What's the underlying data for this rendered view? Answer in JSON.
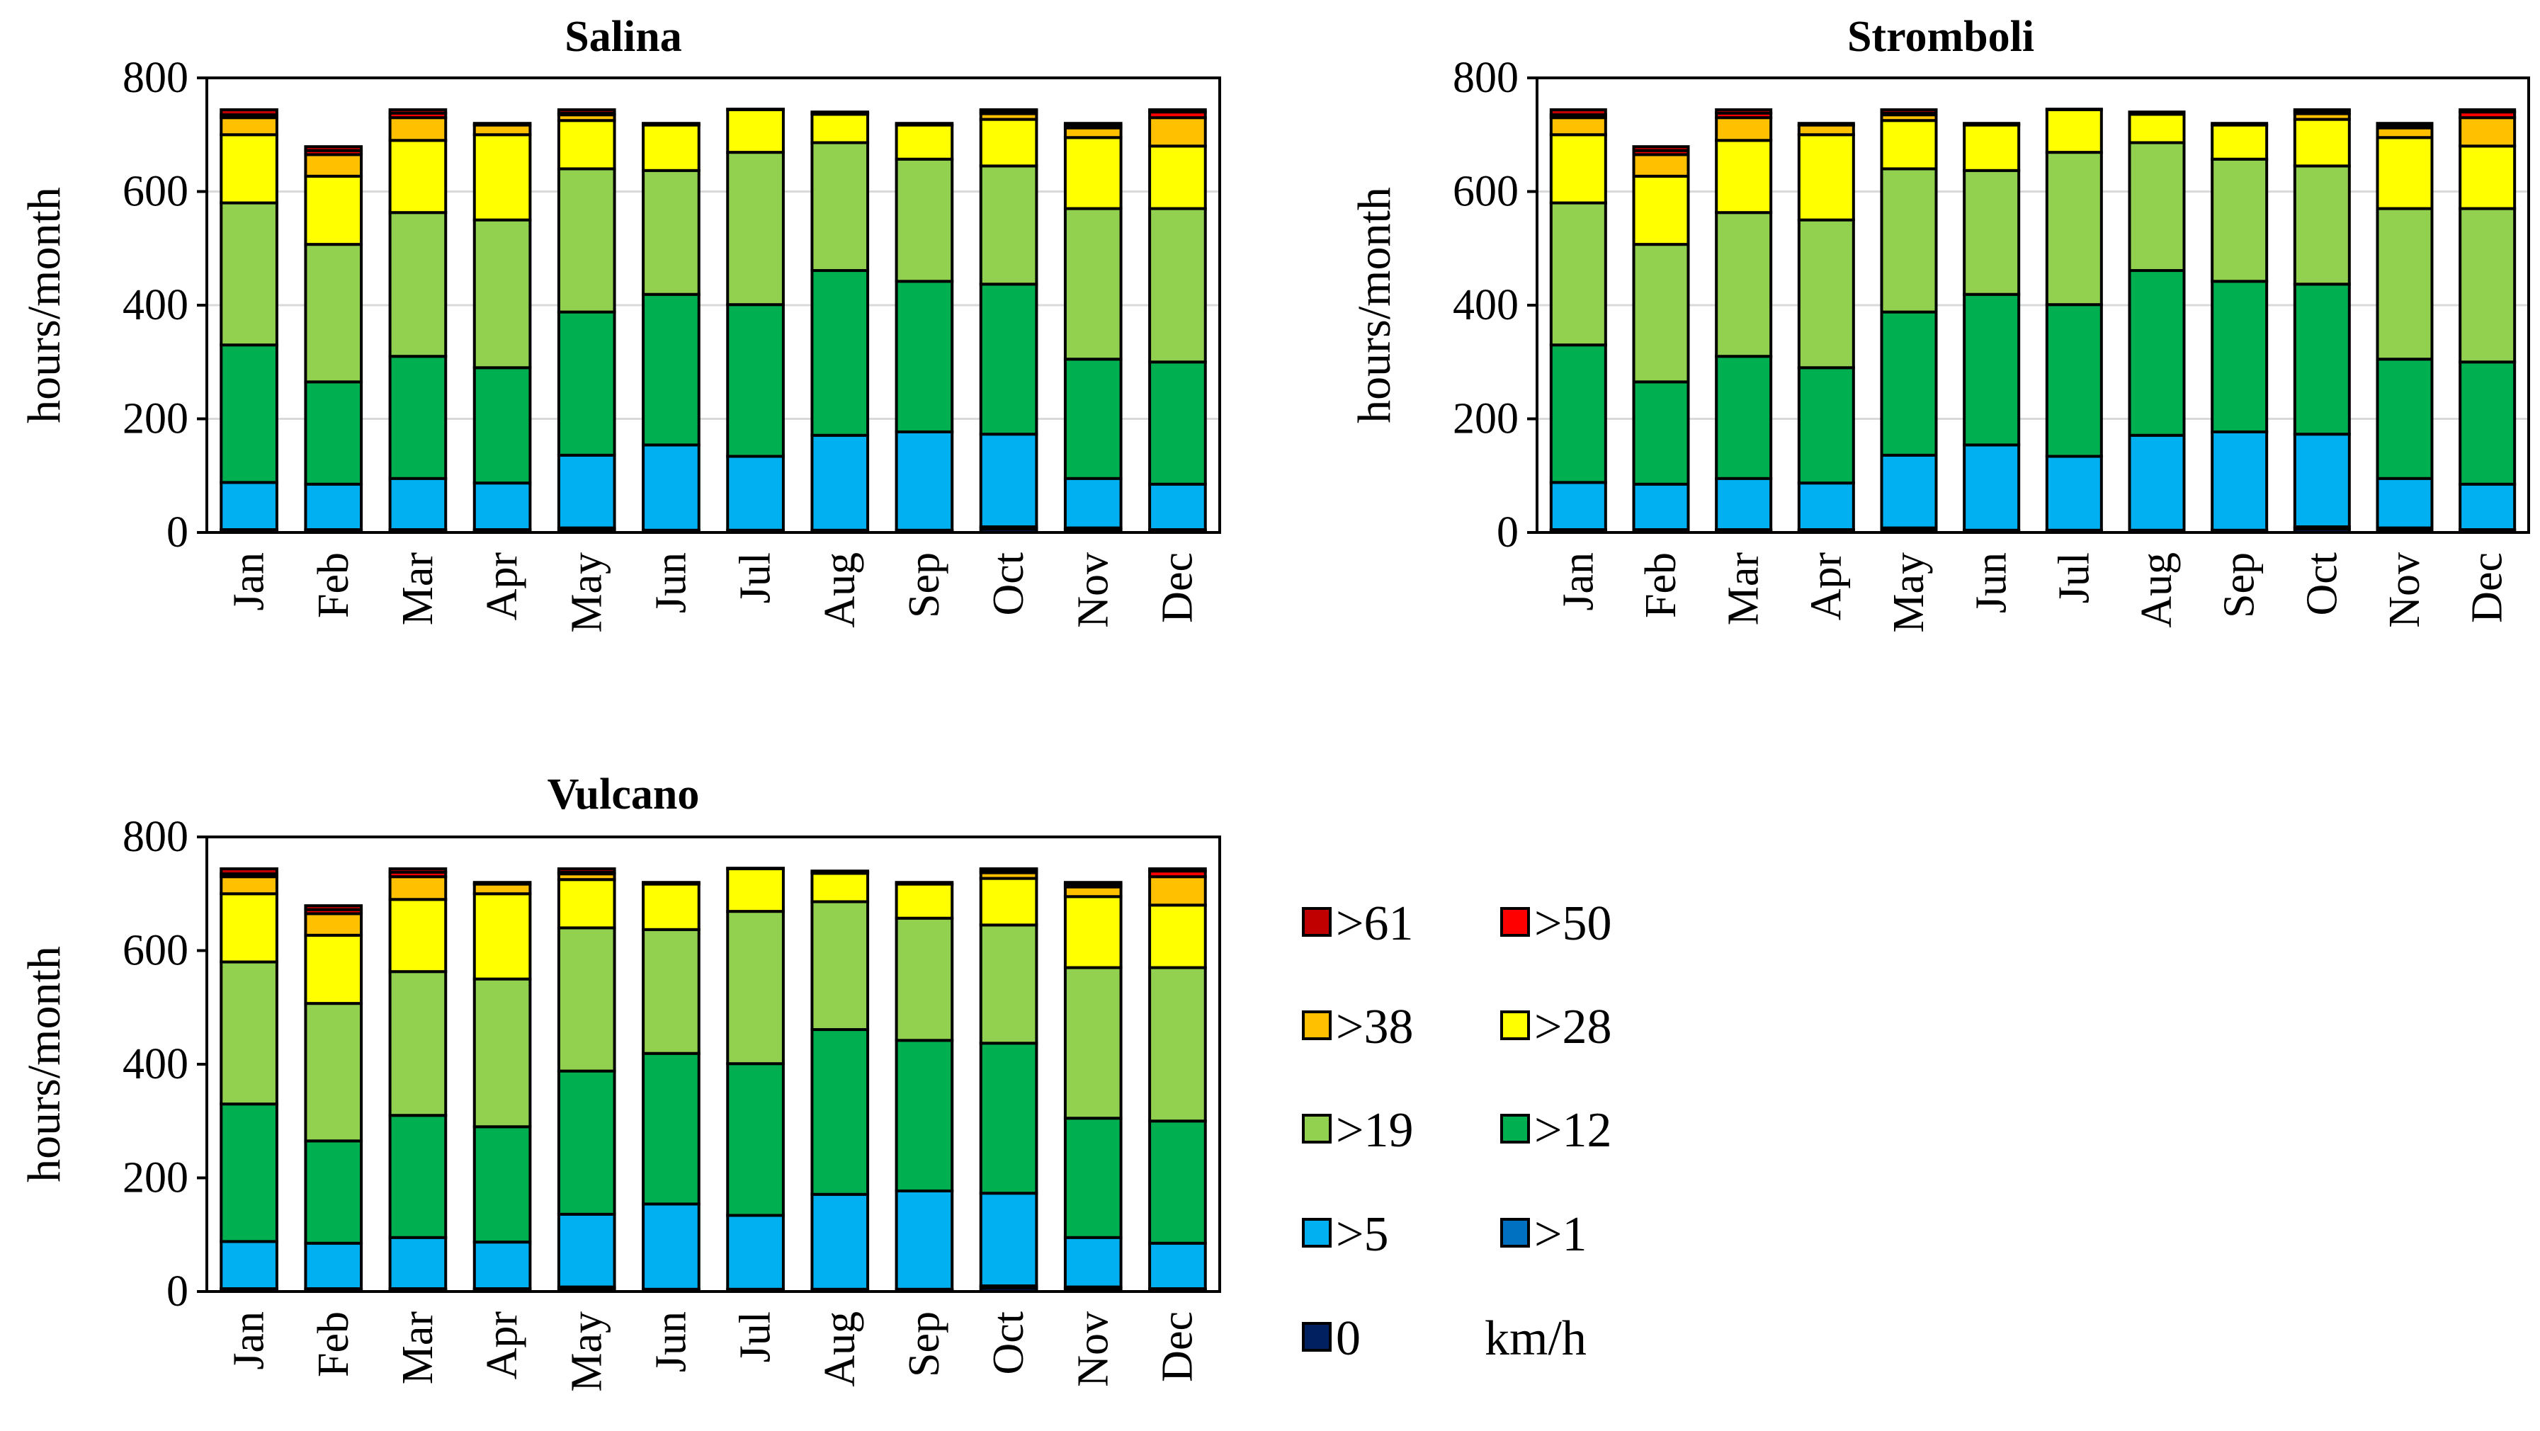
{
  "legend": {
    "unit": "km/h",
    "entries": [
      {
        "label": ">61",
        "color": "#c00000"
      },
      {
        "label": ">50",
        "color": "#ff0000"
      },
      {
        "label": ">38",
        "color": "#ffc000"
      },
      {
        "label": ">28",
        "color": "#ffff00"
      },
      {
        "label": ">19",
        "color": "#92d050"
      },
      {
        "label": ">12",
        "color": "#00b050"
      },
      {
        "label": ">5",
        "color": "#00b0f0"
      },
      {
        "label": ">1",
        "color": "#0070c0"
      },
      {
        "label": "0",
        "color": "#002060"
      }
    ]
  },
  "chart_data": [
    {
      "type": "bar",
      "stacked": true,
      "title": "Salina",
      "ylabel": "hours/month",
      "xlabel": "",
      "ylim": [
        0,
        800
      ],
      "yticks": [
        0,
        200,
        400,
        600,
        800
      ],
      "grid": true,
      "categories": [
        "Jan",
        "Feb",
        "Mar",
        "Apr",
        "May",
        "Jun",
        "Jul",
        "Aug",
        "Sep",
        "Oct",
        "Nov",
        "Dec"
      ],
      "series": [
        {
          "name": "0",
          "color": "#002060",
          "values": [
            3,
            3,
            3,
            3,
            5,
            2,
            2,
            2,
            2,
            6,
            5,
            3
          ]
        },
        {
          "name": ">1",
          "color": "#0070c0",
          "values": [
            2,
            2,
            2,
            2,
            3,
            2,
            2,
            2,
            2,
            4,
            3,
            2
          ]
        },
        {
          "name": ">5",
          "color": "#00b0f0",
          "values": [
            83,
            80,
            90,
            82,
            128,
            150,
            130,
            167,
            173,
            163,
            87,
            80
          ]
        },
        {
          "name": ">12",
          "color": "#00b050",
          "values": [
            242,
            180,
            215,
            203,
            252,
            265,
            267,
            290,
            265,
            264,
            210,
            215
          ]
        },
        {
          "name": ">19",
          "color": "#92d050",
          "values": [
            250,
            242,
            253,
            260,
            252,
            218,
            268,
            225,
            215,
            208,
            265,
            270
          ]
        },
        {
          "name": ">28",
          "color": "#ffff00",
          "values": [
            120,
            120,
            127,
            150,
            85,
            80,
            75,
            50,
            60,
            82,
            125,
            110
          ]
        },
        {
          "name": ">38",
          "color": "#ffc000",
          "values": [
            30,
            38,
            40,
            17,
            10,
            2,
            1,
            2,
            3,
            10,
            17,
            50
          ]
        },
        {
          "name": ">50",
          "color": "#ff0000",
          "values": [
            5,
            7,
            8,
            3,
            3,
            1,
            0,
            2,
            0,
            5,
            5,
            10
          ]
        },
        {
          "name": ">61",
          "color": "#c00000",
          "values": [
            9,
            7,
            6,
            0,
            6,
            0,
            0,
            0,
            0,
            2,
            3,
            4
          ]
        }
      ]
    },
    {
      "type": "bar",
      "stacked": true,
      "title": "Stromboli",
      "ylabel": "hours/month",
      "xlabel": "",
      "ylim": [
        0,
        800
      ],
      "yticks": [
        0,
        200,
        400,
        600,
        800
      ],
      "grid": true,
      "categories": [
        "Jan",
        "Feb",
        "Mar",
        "Apr",
        "May",
        "Jun",
        "Jul",
        "Aug",
        "Sep",
        "Oct",
        "Nov",
        "Dec"
      ],
      "series": [
        {
          "name": "0",
          "color": "#002060",
          "values": [
            3,
            3,
            3,
            3,
            5,
            2,
            2,
            2,
            2,
            6,
            5,
            3
          ]
        },
        {
          "name": ">1",
          "color": "#0070c0",
          "values": [
            2,
            2,
            2,
            2,
            3,
            2,
            2,
            2,
            2,
            4,
            3,
            2
          ]
        },
        {
          "name": ">5",
          "color": "#00b0f0",
          "values": [
            83,
            80,
            90,
            82,
            128,
            150,
            130,
            167,
            173,
            163,
            87,
            80
          ]
        },
        {
          "name": ">12",
          "color": "#00b050",
          "values": [
            242,
            180,
            215,
            203,
            252,
            265,
            267,
            290,
            265,
            264,
            210,
            215
          ]
        },
        {
          "name": ">19",
          "color": "#92d050",
          "values": [
            250,
            242,
            253,
            260,
            252,
            218,
            268,
            225,
            215,
            208,
            265,
            270
          ]
        },
        {
          "name": ">28",
          "color": "#ffff00",
          "values": [
            120,
            120,
            127,
            150,
            85,
            80,
            75,
            50,
            60,
            82,
            125,
            110
          ]
        },
        {
          "name": ">38",
          "color": "#ffc000",
          "values": [
            30,
            38,
            40,
            17,
            10,
            2,
            1,
            2,
            3,
            10,
            17,
            50
          ]
        },
        {
          "name": ">50",
          "color": "#ff0000",
          "values": [
            5,
            7,
            8,
            3,
            3,
            1,
            0,
            2,
            0,
            5,
            5,
            10
          ]
        },
        {
          "name": ">61",
          "color": "#c00000",
          "values": [
            9,
            7,
            6,
            0,
            6,
            0,
            0,
            0,
            0,
            2,
            3,
            4
          ]
        }
      ]
    },
    {
      "type": "bar",
      "stacked": true,
      "title": "Vulcano",
      "ylabel": "hours/month",
      "xlabel": "",
      "ylim": [
        0,
        800
      ],
      "yticks": [
        0,
        200,
        400,
        600,
        800
      ],
      "grid": false,
      "categories": [
        "Jan",
        "Feb",
        "Mar",
        "Apr",
        "May",
        "Jun",
        "Jul",
        "Aug",
        "Sep",
        "Oct",
        "Nov",
        "Dec"
      ],
      "series": [
        {
          "name": "0",
          "color": "#002060",
          "values": [
            3,
            3,
            3,
            3,
            5,
            2,
            2,
            2,
            2,
            6,
            5,
            3
          ]
        },
        {
          "name": ">1",
          "color": "#0070c0",
          "values": [
            2,
            2,
            2,
            2,
            3,
            2,
            2,
            2,
            2,
            4,
            3,
            2
          ]
        },
        {
          "name": ">5",
          "color": "#00b0f0",
          "values": [
            83,
            80,
            90,
            82,
            128,
            150,
            130,
            167,
            173,
            163,
            87,
            80
          ]
        },
        {
          "name": ">12",
          "color": "#00b050",
          "values": [
            242,
            180,
            215,
            203,
            252,
            265,
            267,
            290,
            265,
            264,
            210,
            215
          ]
        },
        {
          "name": ">19",
          "color": "#92d050",
          "values": [
            250,
            242,
            253,
            260,
            252,
            218,
            268,
            225,
            215,
            208,
            265,
            270
          ]
        },
        {
          "name": ">28",
          "color": "#ffff00",
          "values": [
            120,
            120,
            127,
            150,
            85,
            80,
            75,
            50,
            60,
            82,
            125,
            110
          ]
        },
        {
          "name": ">38",
          "color": "#ffc000",
          "values": [
            30,
            38,
            40,
            17,
            10,
            2,
            1,
            2,
            3,
            10,
            17,
            50
          ]
        },
        {
          "name": ">50",
          "color": "#ff0000",
          "values": [
            5,
            7,
            8,
            3,
            3,
            1,
            0,
            2,
            0,
            5,
            5,
            10
          ]
        },
        {
          "name": ">61",
          "color": "#c00000",
          "values": [
            9,
            7,
            6,
            0,
            6,
            0,
            0,
            0,
            0,
            2,
            3,
            4
          ]
        }
      ]
    }
  ]
}
